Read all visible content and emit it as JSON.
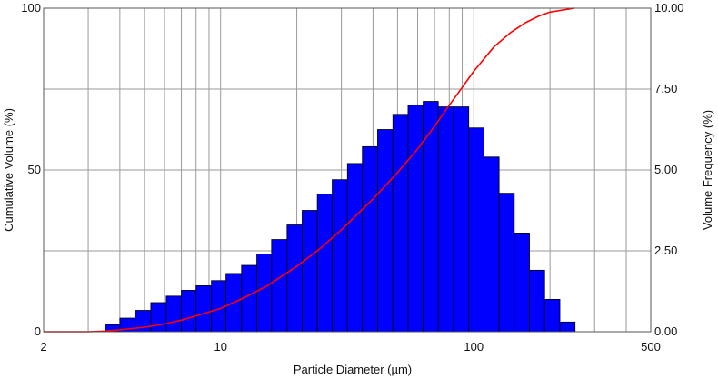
{
  "chart_data": {
    "type": "bar+line",
    "x_scale": "log",
    "xlim": [
      2,
      500
    ],
    "xlabel": "Particle Diameter (µm)",
    "x_ticks": [
      "2",
      "10",
      "100",
      "500"
    ],
    "ylabel_left": "Cumulative Volume (%)",
    "ylim_left": [
      0,
      100
    ],
    "y_ticks_left": [
      "0",
      "50",
      "100"
    ],
    "ylabel_right": "Volume Frequency (%)",
    "ylim_right": [
      0,
      10
    ],
    "y_ticks_right": [
      "0.00",
      "2.50",
      "5.00",
      "7.50",
      "10.00"
    ],
    "grid": true,
    "histogram": {
      "color": "#0000ff",
      "bins": [
        {
          "x0": 3.5,
          "x1": 4.0,
          "value": 0.22
        },
        {
          "x0": 4.0,
          "x1": 4.6,
          "value": 0.42
        },
        {
          "x0": 4.6,
          "x1": 5.3,
          "value": 0.66
        },
        {
          "x0": 5.3,
          "x1": 6.1,
          "value": 0.9
        },
        {
          "x0": 6.1,
          "x1": 7.0,
          "value": 1.1
        },
        {
          "x0": 7.0,
          "x1": 8.0,
          "value": 1.28
        },
        {
          "x0": 8.0,
          "x1": 9.2,
          "value": 1.42
        },
        {
          "x0": 9.2,
          "x1": 10.5,
          "value": 1.58
        },
        {
          "x0": 10.5,
          "x1": 12.1,
          "value": 1.8
        },
        {
          "x0": 12.1,
          "x1": 13.9,
          "value": 2.05
        },
        {
          "x0": 13.9,
          "x1": 15.9,
          "value": 2.4
        },
        {
          "x0": 15.9,
          "x1": 18.3,
          "value": 2.85
        },
        {
          "x0": 18.3,
          "x1": 21.0,
          "value": 3.3
        },
        {
          "x0": 21.0,
          "x1": 24.1,
          "value": 3.75
        },
        {
          "x0": 24.1,
          "x1": 27.6,
          "value": 4.25
        },
        {
          "x0": 27.6,
          "x1": 31.7,
          "value": 4.7
        },
        {
          "x0": 31.7,
          "x1": 36.3,
          "value": 5.2
        },
        {
          "x0": 36.3,
          "x1": 41.7,
          "value": 5.72
        },
        {
          "x0": 41.7,
          "x1": 47.9,
          "value": 6.25
        },
        {
          "x0": 47.9,
          "x1": 55.0,
          "value": 6.72
        },
        {
          "x0": 55.0,
          "x1": 63.1,
          "value": 7.0
        },
        {
          "x0": 63.1,
          "x1": 72.4,
          "value": 7.12
        },
        {
          "x0": 72.4,
          "x1": 83.2,
          "value": 6.95
        },
        {
          "x0": 83.2,
          "x1": 95.5,
          "value": 6.95
        },
        {
          "x0": 95.5,
          "x1": 109.6,
          "value": 6.3
        },
        {
          "x0": 109.6,
          "x1": 125.9,
          "value": 5.4
        },
        {
          "x0": 125.9,
          "x1": 144.5,
          "value": 4.28
        },
        {
          "x0": 144.5,
          "x1": 165.9,
          "value": 3.05
        },
        {
          "x0": 165.9,
          "x1": 190.5,
          "value": 1.9
        },
        {
          "x0": 190.5,
          "x1": 218.8,
          "value": 1.0
        },
        {
          "x0": 218.8,
          "x1": 251.2,
          "value": 0.3
        }
      ]
    },
    "cumulative": {
      "color": "#ff0000",
      "x": [
        2,
        3,
        3.5,
        4,
        5,
        6,
        7,
        8,
        10,
        12,
        15,
        20,
        25,
        30,
        40,
        50,
        60,
        70,
        80,
        90,
        100,
        120,
        140,
        160,
        180,
        200,
        250
      ],
      "y": [
        0,
        0,
        0.2,
        0.6,
        1.4,
        2.4,
        3.6,
        4.9,
        7.2,
        10.0,
        13.8,
        20.2,
        26.0,
        31.5,
        41.0,
        49.2,
        56.5,
        63.5,
        70.0,
        75.5,
        80.5,
        88.0,
        92.5,
        95.5,
        97.5,
        98.8,
        100
      ]
    }
  }
}
